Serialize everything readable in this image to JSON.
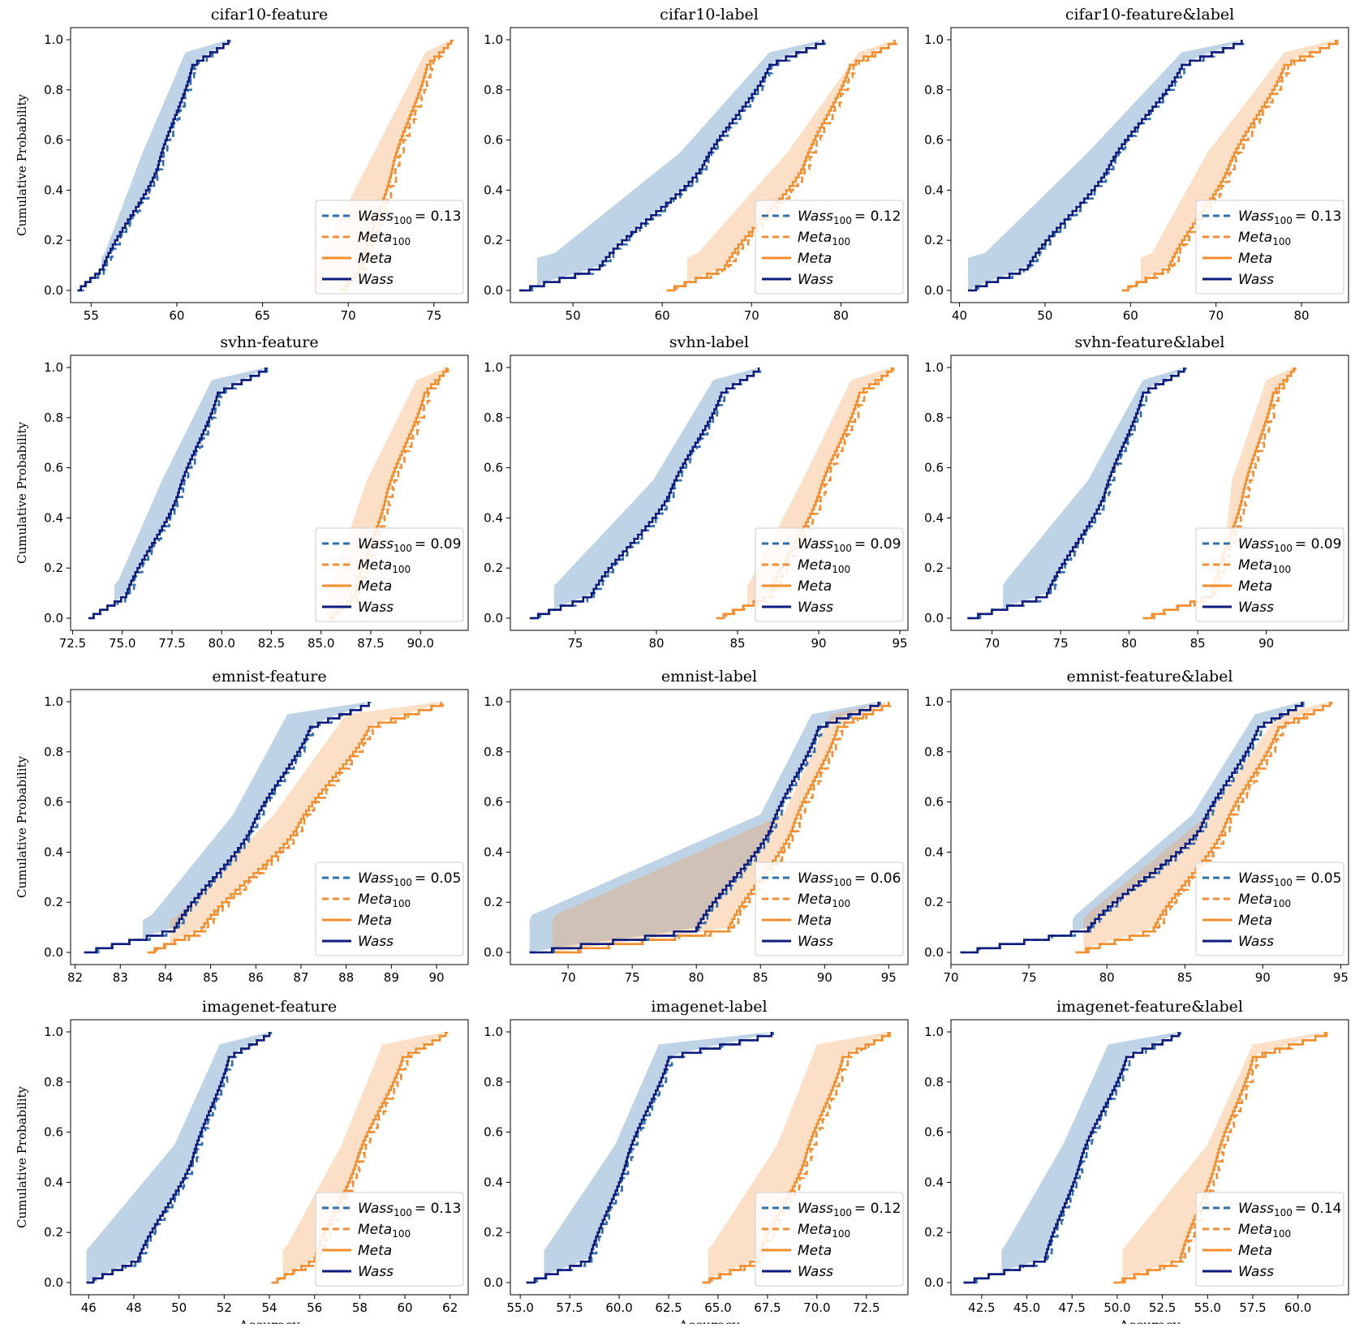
{
  "figure": {
    "ylabel": "Cumulative Probability",
    "xlabel": "Accuracy"
  },
  "colors": {
    "wass_band": "#3777b4",
    "meta_band": "#f39c4e",
    "wass100": "#2e6fad",
    "meta100": "#f58e33",
    "meta": "#f48e2c",
    "wass": "#0e1b7e"
  },
  "chart_data": [
    {
      "type": "line",
      "title": "cifar10-feature",
      "xlim": [
        53.8,
        77
      ],
      "xticks": [
        55,
        60,
        65,
        70,
        75
      ],
      "wass": [
        54.2,
        55.7,
        58.9,
        60.9,
        63.0
      ],
      "meta": [
        69.6,
        70.8,
        72.6,
        74.6,
        76.0
      ],
      "band_w": [
        55.6,
        55.8,
        58.0,
        60.5
      ],
      "band_m": [
        68.2,
        68.5,
        71.5,
        74.5
      ],
      "legend": {
        "wass100": "Wass",
        "wass100_sub": "100",
        "wass100_value": "= 0.13",
        "meta100": "Meta",
        "meta100_sub": "100",
        "meta": "Meta",
        "wass": "Wass"
      }
    },
    {
      "type": "line",
      "title": "cifar10-label",
      "xlim": [
        43,
        87.5
      ],
      "xticks": [
        50,
        60,
        70,
        80
      ],
      "wass": [
        44.0,
        53.0,
        64.5,
        72.0,
        78.0
      ],
      "meta": [
        60.5,
        67.0,
        75.8,
        81.0,
        86.0
      ],
      "band_w": [
        46.0,
        48.0,
        62.0,
        72.0
      ],
      "band_m": [
        62.8,
        64.0,
        74.0,
        82.0
      ],
      "legend": {
        "wass100": "Wass",
        "wass100_sub": "100",
        "wass100_value": "= 0.12",
        "meta100": "Meta",
        "meta100_sub": "100",
        "meta": "Meta",
        "wass": "Wass"
      }
    },
    {
      "type": "line",
      "title": "cifar10-feature&label",
      "xlim": [
        39,
        85.5
      ],
      "xticks": [
        40,
        50,
        60,
        70,
        80
      ],
      "wass": [
        41.0,
        48.0,
        57.5,
        66.0,
        73.0
      ],
      "meta": [
        59.0,
        64.5,
        71.5,
        78.0,
        84.0
      ],
      "band_w": [
        41.0,
        43.0,
        55.0,
        66.0
      ],
      "band_m": [
        61.2,
        62.5,
        69.0,
        78.0
      ],
      "legend": {
        "wass100": "Wass",
        "wass100_sub": "100",
        "wass100_value": "= 0.13",
        "meta100": "Meta",
        "meta100_sub": "100",
        "meta": "Meta",
        "wass": "Wass"
      }
    },
    {
      "type": "line",
      "title": "svhn-feature",
      "xlim": [
        72.4,
        92.4
      ],
      "xticks": [
        72.5,
        75.0,
        77.5,
        80.0,
        82.5,
        85.0,
        87.5,
        90.0
      ],
      "wass": [
        73.3,
        75.2,
        77.8,
        79.8,
        82.2
      ],
      "meta": [
        85.4,
        86.7,
        88.3,
        90.2,
        91.3
      ],
      "band_w": [
        74.6,
        74.8,
        77.0,
        79.5
      ],
      "band_m": [
        85.4,
        85.6,
        87.3,
        89.8
      ],
      "legend": {
        "wass100": "Wass",
        "wass100_sub": "100",
        "wass100_value": "= 0.09",
        "meta100": "Meta",
        "meta100_sub": "100",
        "meta": "Meta",
        "wass": "Wass"
      }
    },
    {
      "type": "line",
      "title": "svhn-label",
      "xlim": [
        71,
        95.5
      ],
      "xticks": [
        75,
        80,
        85,
        90,
        95
      ],
      "wass": [
        72.2,
        76.0,
        80.8,
        84.0,
        86.3
      ],
      "meta": [
        83.7,
        87.0,
        90.0,
        92.5,
        94.5
      ],
      "band_w": [
        73.7,
        74.0,
        79.8,
        83.5
      ],
      "band_m": [
        85.6,
        85.8,
        89.0,
        92.0
      ],
      "legend": {
        "wass100": "Wass",
        "wass100_sub": "100",
        "wass100_value": "= 0.09",
        "meta100": "Meta",
        "meta100_sub": "100",
        "meta": "Meta",
        "wass": "Wass"
      }
    },
    {
      "type": "line",
      "title": "svhn-feature&label",
      "xlim": [
        67,
        96
      ],
      "xticks": [
        70,
        75,
        80,
        85,
        90
      ],
      "wass": [
        68.2,
        74.0,
        78.2,
        81.0,
        84.0
      ],
      "meta": [
        81.0,
        86.0,
        88.3,
        90.5,
        92.0
      ],
      "band_w": [
        70.8,
        71.0,
        77.0,
        81.0
      ],
      "band_m": [
        86.5,
        86.7,
        87.5,
        90.0
      ],
      "legend": {
        "wass100": "Wass",
        "wass100_sub": "100",
        "wass100_value": "= 0.09",
        "meta100": "Meta",
        "meta100_sub": "100",
        "meta": "Meta",
        "wass": "Wass"
      }
    },
    {
      "type": "line",
      "title": "emnist-feature",
      "xlim": [
        81.9,
        90.7
      ],
      "xticks": [
        82,
        83,
        84,
        85,
        86,
        87,
        88,
        89,
        90
      ],
      "wass": [
        82.2,
        84.2,
        85.9,
        87.2,
        88.5
      ],
      "meta": [
        83.6,
        84.8,
        86.9,
        88.5,
        90.1
      ],
      "band_w": [
        83.5,
        83.7,
        85.5,
        86.7
      ],
      "band_m": [
        84.1,
        84.3,
        86.4,
        88.0
      ],
      "legend": {
        "wass100": "Wass",
        "wass100_sub": "100",
        "wass100_value": "= 0.05",
        "meta100": "Meta",
        "meta100_sub": "100",
        "meta": "Meta",
        "wass": "Wass"
      }
    },
    {
      "type": "line",
      "title": "emnist-label",
      "xlim": [
        65.5,
        96.5
      ],
      "xticks": [
        70,
        75,
        80,
        85,
        90,
        95
      ],
      "wass": [
        67.0,
        80.0,
        85.8,
        89.5,
        94.2
      ],
      "meta": [
        69.0,
        82.5,
        87.5,
        91.0,
        95.0
      ],
      "band_w": [
        67.0,
        67.2,
        85.0,
        89.0
      ],
      "band_m": [
        68.8,
        69.0,
        86.8,
        90.5
      ],
      "legend": {
        "wass100": "Wass",
        "wass100_sub": "100",
        "wass100_value": "= 0.06",
        "meta100": "Meta",
        "meta100_sub": "100",
        "meta": "Meta",
        "wass": "Wass"
      }
    },
    {
      "type": "line",
      "title": "emnist-feature&label",
      "xlim": [
        70,
        95.5
      ],
      "xticks": [
        70,
        75,
        80,
        85,
        90,
        95
      ],
      "wass": [
        70.6,
        78.8,
        86.0,
        89.7,
        92.5
      ],
      "meta": [
        78.0,
        83.0,
        87.5,
        91.0,
        94.3
      ],
      "band_w": [
        77.8,
        78.0,
        85.5,
        89.5
      ],
      "band_m": [
        78.5,
        78.7,
        86.5,
        91.0
      ],
      "legend": {
        "wass100": "Wass",
        "wass100_sub": "100",
        "wass100_value": "= 0.05",
        "meta100": "Meta",
        "meta100_sub": "100",
        "meta": "Meta",
        "wass": "Wass"
      }
    },
    {
      "type": "line",
      "title": "imagenet-feature",
      "xlim": [
        45.2,
        62.8
      ],
      "xticks": [
        46,
        48,
        50,
        52,
        54,
        56,
        58,
        60,
        62
      ],
      "wass": [
        45.9,
        48.2,
        50.6,
        52.2,
        54.0
      ],
      "meta": [
        54.1,
        56.0,
        57.9,
        59.9,
        61.8
      ],
      "band_w": [
        45.9,
        46.1,
        49.8,
        51.8
      ],
      "band_m": [
        54.6,
        54.8,
        57.2,
        59.0
      ],
      "legend": {
        "wass100": "Wass",
        "wass100_sub": "100",
        "wass100_value": "= 0.13",
        "meta100": "Meta",
        "meta100_sub": "100",
        "meta": "Meta",
        "wass": "Wass"
      }
    },
    {
      "type": "line",
      "title": "imagenet-label",
      "xlim": [
        54.5,
        74.6
      ],
      "xticks": [
        55.0,
        57.5,
        60.0,
        62.5,
        65.0,
        67.5,
        70.0,
        72.5
      ],
      "wass": [
        55.3,
        58.5,
        60.4,
        62.5,
        67.7
      ],
      "meta": [
        64.2,
        67.0,
        69.4,
        71.3,
        73.6
      ],
      "band_w": [
        56.2,
        56.4,
        59.8,
        62.0
      ],
      "band_m": [
        64.5,
        64.7,
        68.0,
        70.0
      ],
      "legend": {
        "wass100": "Wass",
        "wass100_sub": "100",
        "wass100_value": "= 0.12",
        "meta100": "Meta",
        "meta100_sub": "100",
        "meta": "Meta",
        "wass": "Wass"
      }
    },
    {
      "type": "line",
      "title": "imagenet-feature&label",
      "xlim": [
        40.8,
        62.8
      ],
      "xticks": [
        42.5,
        45.0,
        47.5,
        50.0,
        52.5,
        55.0,
        57.5,
        60.0
      ],
      "wass": [
        41.5,
        46.0,
        48.0,
        50.5,
        53.4
      ],
      "meta": [
        49.8,
        53.5,
        55.5,
        57.5,
        61.5
      ],
      "band_w": [
        43.6,
        43.8,
        47.0,
        49.5
      ],
      "band_m": [
        50.3,
        50.5,
        55.0,
        57.5
      ],
      "legend": {
        "wass100": "Wass",
        "wass100_sub": "100",
        "wass100_value": "= 0.14",
        "meta100": "Meta",
        "meta100_sub": "100",
        "meta": "Meta",
        "wass": "Wass"
      }
    }
  ]
}
